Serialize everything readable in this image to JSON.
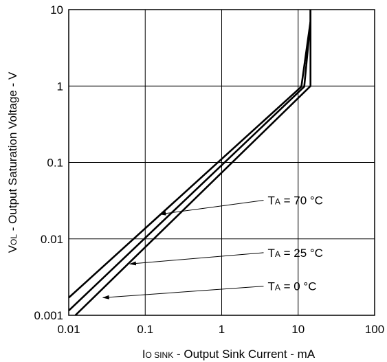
{
  "chart_data": {
    "type": "line",
    "xscale": "log",
    "yscale": "log",
    "xlim": [
      0.01,
      100
    ],
    "ylim": [
      0.001,
      10
    ],
    "grid": true,
    "xticks": [
      "0.01",
      "0.1",
      "1",
      "10",
      "100"
    ],
    "yticks": [
      "10",
      "1",
      "0.1",
      "0.01",
      "0.001"
    ],
    "xlabel": {
      "main": "I",
      "sub": "O SINK",
      "rest": " - Output Sink Current - mA"
    },
    "ylabel": {
      "main": "V",
      "sub": "OL",
      "rest": " - Output Saturation Voltage - V"
    },
    "series": [
      {
        "name": {
          "main": "T",
          "sub": "A",
          "rest": " = 70 °C"
        },
        "x": [
          0.01,
          11,
          14.5,
          14.5
        ],
        "y": [
          0.0017,
          0.98,
          7,
          10
        ]
      },
      {
        "name": {
          "main": "T",
          "sub": "A",
          "rest": " = 25 °C"
        },
        "x": [
          0.01,
          12,
          14.5,
          14.5
        ],
        "y": [
          0.00115,
          0.98,
          7,
          10
        ]
      },
      {
        "name": {
          "main": "T",
          "sub": "A",
          "rest": " = 0 °C"
        },
        "x": [
          0.0122,
          14.5,
          14.5
        ],
        "y": [
          0.001,
          1,
          10
        ]
      }
    ],
    "annotations": [
      {
        "series": 0,
        "text_x": 4.0,
        "text_y": 0.032,
        "arrow_x": 0.155,
        "arrow_y": 0.021
      },
      {
        "series": 1,
        "text_x": 4.0,
        "text_y": 0.0066,
        "arrow_x": 0.063,
        "arrow_y": 0.0047
      },
      {
        "series": 2,
        "text_x": 4.0,
        "text_y": 0.0024,
        "arrow_x": 0.028,
        "arrow_y": 0.0017
      }
    ]
  }
}
